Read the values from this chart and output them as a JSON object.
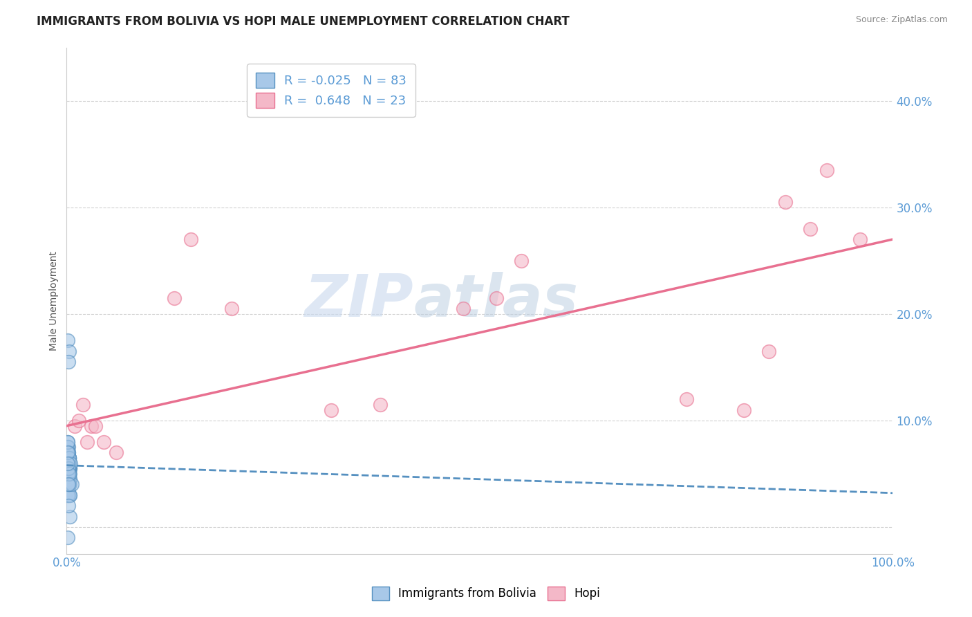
{
  "title": "IMMIGRANTS FROM BOLIVIA VS HOPI MALE UNEMPLOYMENT CORRELATION CHART",
  "source": "Source: ZipAtlas.com",
  "ylabel": "Male Unemployment",
  "xlim": [
    0.0,
    1.0
  ],
  "ylim": [
    -0.025,
    0.45
  ],
  "yticks": [
    0.0,
    0.1,
    0.2,
    0.3,
    0.4
  ],
  "ytick_labels": [
    "",
    "10.0%",
    "20.0%",
    "30.0%",
    "40.0%"
  ],
  "xticks": [
    0.0,
    0.1,
    0.2,
    0.3,
    0.4,
    0.5,
    0.6,
    0.7,
    0.8,
    0.9,
    1.0
  ],
  "xtick_labels": [
    "0.0%",
    "",
    "",
    "",
    "",
    "",
    "",
    "",
    "",
    "",
    "100.0%"
  ],
  "legend_r1": "R = -0.025",
  "legend_n1": "N = 83",
  "legend_r2": "R =  0.648",
  "legend_n2": "N = 23",
  "color_blue": "#a8c8e8",
  "color_pink": "#f4b8c8",
  "color_blue_dark": "#5590c0",
  "color_pink_dark": "#e87090",
  "color_blue_line": "#5590c0",
  "color_pink_line": "#e87090",
  "watermark_zip": "ZIP",
  "watermark_atlas": "atlas",
  "grid_color": "#cccccc",
  "background_color": "#ffffff",
  "title_fontsize": 12,
  "blue_scatter_x": [
    0.001,
    0.002,
    0.001,
    0.003,
    0.002,
    0.001,
    0.004,
    0.001,
    0.002,
    0.003,
    0.001,
    0.002,
    0.001,
    0.003,
    0.004,
    0.002,
    0.001,
    0.003,
    0.002,
    0.001,
    0.002,
    0.001,
    0.003,
    0.002,
    0.004,
    0.001,
    0.002,
    0.003,
    0.001,
    0.002,
    0.003,
    0.004,
    0.001,
    0.002,
    0.001,
    0.003,
    0.002,
    0.001,
    0.004,
    0.002,
    0.001,
    0.003,
    0.002,
    0.001,
    0.003,
    0.002,
    0.004,
    0.001,
    0.002,
    0.003,
    0.001,
    0.002,
    0.003,
    0.004,
    0.001,
    0.002,
    0.001,
    0.003,
    0.002,
    0.004,
    0.001,
    0.002,
    0.003,
    0.001,
    0.002,
    0.004,
    0.003,
    0.001,
    0.002,
    0.003,
    0.005,
    0.002,
    0.001,
    0.006,
    0.003,
    0.001,
    0.002,
    0.001,
    0.003,
    0.002,
    0.004,
    0.001,
    0.002
  ],
  "blue_scatter_y": [
    0.055,
    0.045,
    0.065,
    0.05,
    0.035,
    0.07,
    0.055,
    0.04,
    0.06,
    0.05,
    0.03,
    0.045,
    0.05,
    0.06,
    0.055,
    0.04,
    0.075,
    0.055,
    0.065,
    0.04,
    0.055,
    0.03,
    0.06,
    0.05,
    0.045,
    0.07,
    0.055,
    0.065,
    0.04,
    0.05,
    0.06,
    0.05,
    0.045,
    0.07,
    0.055,
    0.065,
    0.04,
    0.05,
    0.03,
    0.06,
    0.055,
    0.04,
    0.075,
    0.055,
    0.065,
    0.04,
    0.055,
    0.03,
    0.06,
    0.055,
    0.08,
    0.05,
    0.065,
    0.045,
    0.055,
    0.03,
    0.075,
    0.055,
    0.065,
    0.04,
    0.05,
    0.07,
    0.06,
    0.04,
    0.055,
    0.03,
    0.065,
    0.08,
    0.05,
    0.04,
    0.06,
    0.055,
    0.07,
    0.04,
    0.05,
    0.06,
    0.04,
    0.175,
    0.165,
    0.155,
    0.01,
    -0.01,
    0.02
  ],
  "pink_scatter_x": [
    0.01,
    0.015,
    0.025,
    0.02,
    0.03,
    0.035,
    0.045,
    0.06,
    0.75,
    0.82,
    0.85,
    0.87,
    0.9,
    0.92,
    0.96,
    0.48,
    0.52,
    0.55,
    0.13,
    0.15,
    0.2,
    0.32,
    0.38
  ],
  "pink_scatter_y": [
    0.095,
    0.1,
    0.08,
    0.115,
    0.095,
    0.095,
    0.08,
    0.07,
    0.12,
    0.11,
    0.165,
    0.305,
    0.28,
    0.335,
    0.27,
    0.205,
    0.215,
    0.25,
    0.215,
    0.27,
    0.205,
    0.11,
    0.115
  ],
  "blue_trend_x": [
    0.0,
    1.0
  ],
  "blue_trend_y": [
    0.058,
    0.032
  ],
  "pink_trend_x": [
    0.0,
    1.0
  ],
  "pink_trend_y": [
    0.095,
    0.27
  ]
}
